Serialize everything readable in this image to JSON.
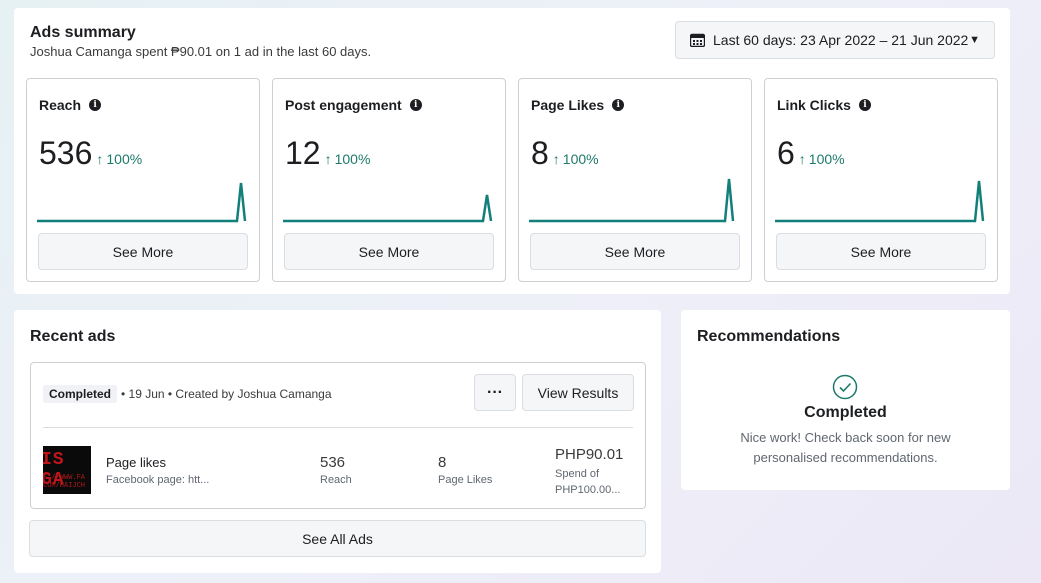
{
  "summary": {
    "title": "Ads summary",
    "subtitle": "Joshua Camanga spent ₱90.01 on 1 ad in the last 60 days.",
    "date_range": "Last 60 days: 23 Apr 2022 – 21 Jun 2022",
    "accent_color": "#1d7a6a",
    "spark_color": "#137f7a",
    "metrics": [
      {
        "label": "Reach",
        "value": "536",
        "change": "100%",
        "see_more": "See More"
      },
      {
        "label": "Post engagement",
        "value": "12",
        "change": "100%",
        "see_more": "See More"
      },
      {
        "label": "Page Likes",
        "value": "8",
        "change": "100%",
        "see_more": "See More"
      },
      {
        "label": "Link Clicks",
        "value": "6",
        "change": "100%",
        "see_more": "See More"
      }
    ]
  },
  "recent": {
    "title": "Recent ads",
    "ad": {
      "status": "Completed",
      "meta": "• 19 Jun • Created by Joshua Camanga",
      "more_label": "···",
      "view_results": "View Results",
      "thumb_text_1": "IS GA",
      "thumb_text_2": "S://WWW.FA\nCOM/HAIJCH",
      "name": "Page likes",
      "description": "Facebook page: htt...",
      "reach_value": "536",
      "reach_label": "Reach",
      "likes_value": "8",
      "likes_label": "Page Likes",
      "spend_value": "PHP90.01",
      "spend_label": "Spend of PHP100.00..."
    },
    "see_all": "See All Ads"
  },
  "recommendations": {
    "title": "Recommendations",
    "status": "Completed",
    "message": "Nice work! Check back soon for new personalised recommendations."
  }
}
